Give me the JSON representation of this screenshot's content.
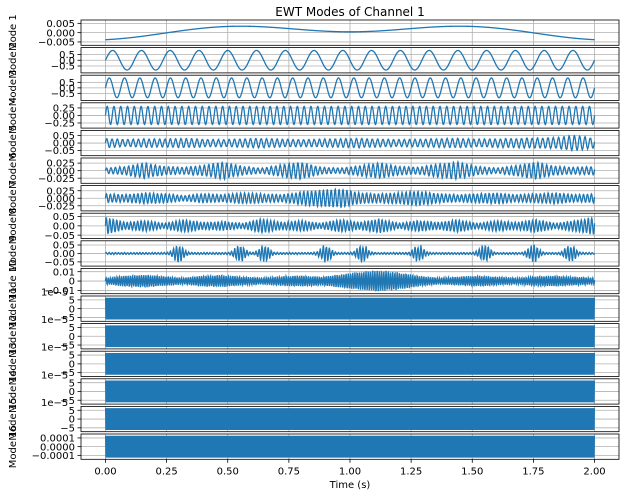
{
  "chart_data": {
    "type": "line",
    "title": "EWT Modes of Channel 1",
    "xlabel": "Time (s)",
    "xlim": [
      -0.1,
      2.1
    ],
    "x_ticks": [
      "0.00",
      "0.25",
      "0.50",
      "0.75",
      "1.00",
      "1.25",
      "1.50",
      "1.75",
      "2.00"
    ],
    "x_tick_values": [
      0,
      0.25,
      0.5,
      0.75,
      1.0,
      1.25,
      1.5,
      1.75,
      2.0
    ],
    "x_range": [
      0,
      2
    ],
    "grid": true,
    "line_color": "#1f77b4",
    "panels": [
      {
        "ylabel": "Mode 1",
        "ticks": [
          "0.005",
          "0.000",
          "−0.005"
        ],
        "tick_values": [
          0.005,
          0,
          -0.005
        ],
        "ylim": [
          -0.0068,
          0.0068
        ],
        "offset_text": "",
        "signal": {
          "kind": "trend",
          "amp": 0.0062
        }
      },
      {
        "ylabel": "Mode 2",
        "ticks": [
          "0.5",
          "0.0",
          "−0.5"
        ],
        "tick_values": [
          0.5,
          0,
          -0.5
        ],
        "ylim": [
          -1.1,
          1.1
        ],
        "offset_text": "",
        "signal": {
          "kind": "sine",
          "amp": 0.85,
          "freq": 8.5
        }
      },
      {
        "ylabel": "Mode 3",
        "ticks": [
          "0.5",
          "0.0",
          "−0.5"
        ],
        "tick_values": [
          0.5,
          0,
          -0.5
        ],
        "ylim": [
          -1.15,
          1.15
        ],
        "offset_text": "",
        "signal": {
          "kind": "sine",
          "amp": 0.9,
          "freq": 16
        }
      },
      {
        "ylabel": "Mode 4",
        "ticks": [
          "0.25",
          "0.00",
          "−0.25"
        ],
        "tick_values": [
          0.25,
          0,
          -0.25
        ],
        "ylim": [
          -0.42,
          0.42
        ],
        "offset_text": "",
        "signal": {
          "kind": "sine",
          "amp": 0.3,
          "freq": 36
        }
      },
      {
        "ylabel": "Mode 5",
        "ticks": [
          "0.05",
          "0.00",
          "−0.05"
        ],
        "tick_values": [
          0.05,
          0,
          -0.05
        ],
        "ylim": [
          -0.085,
          0.085
        ],
        "offset_text": "",
        "signal": {
          "kind": "am",
          "amp": 0.055,
          "freq": 46,
          "seed": 5,
          "env": [
            0.6,
            0.45,
            0.55,
            0.5,
            0.6,
            0.5,
            0.45,
            0.55,
            0.6,
            0.5,
            0.45,
            0.5,
            0.55,
            0.6,
            0.5,
            0.45,
            0.5,
            0.55,
            0.6,
            0.5,
            0.55,
            0.6,
            0.65,
            0.7,
            1.0,
            0.6
          ]
        }
      },
      {
        "ylabel": "Mode 6",
        "ticks": [
          "0.025",
          "0.000",
          "−0.025"
        ],
        "tick_values": [
          0.025,
          0,
          -0.025
        ],
        "ylim": [
          -0.042,
          0.042
        ],
        "offset_text": "",
        "signal": {
          "kind": "am",
          "amp": 0.03,
          "freq": 55,
          "seed": 6,
          "env": [
            0.3,
            0.5,
            0.9,
            0.5,
            0.4,
            0.6,
            1.0,
            0.5,
            0.3,
            0.7,
            1.0,
            0.4,
            0.3,
            0.6,
            0.9,
            0.5,
            0.4,
            0.8,
            1.0,
            0.5,
            0.3,
            0.6,
            1.0,
            0.5,
            0.4,
            0.5
          ]
        }
      },
      {
        "ylabel": "Mode 7",
        "ticks": [
          "0.025",
          "0.000",
          "−0.025"
        ],
        "tick_values": [
          0.025,
          0,
          -0.025
        ],
        "ylim": [
          -0.042,
          0.042
        ],
        "offset_text": "",
        "signal": {
          "kind": "am",
          "amp": 0.032,
          "freq": 62,
          "seed": 7,
          "env": [
            0.5,
            0.4,
            0.6,
            0.5,
            0.3,
            0.5,
            0.4,
            0.6,
            0.5,
            0.4,
            0.7,
            0.9,
            1.0,
            0.6,
            0.5,
            0.6,
            0.8,
            0.5,
            0.4,
            0.5,
            0.6,
            0.4,
            0.5,
            0.6,
            0.4,
            0.5
          ]
        }
      },
      {
        "ylabel": "Mode 8",
        "ticks": [
          "0.05",
          "0.00",
          "−0.05"
        ],
        "tick_values": [
          0.05,
          0,
          -0.05
        ],
        "ylim": [
          -0.068,
          0.068
        ],
        "offset_text": "",
        "signal": {
          "kind": "am",
          "amp": 0.05,
          "freq": 70,
          "seed": 8,
          "env": [
            1.0,
            0.4,
            0.6,
            0.3,
            0.7,
            0.4,
            0.5,
            0.3,
            0.8,
            0.4,
            0.6,
            0.3,
            0.7,
            0.4,
            0.8,
            0.3,
            0.6,
            0.4,
            0.7,
            0.3,
            0.6,
            0.4,
            0.7,
            0.3,
            0.6,
            1.0
          ]
        }
      },
      {
        "ylabel": "Mode 9",
        "ticks": [
          "0.05",
          "0.00",
          "−0.05"
        ],
        "tick_values": [
          0.05,
          0,
          -0.05
        ],
        "ylim": [
          -0.075,
          0.075
        ],
        "offset_text": "",
        "signal": {
          "kind": "bursts",
          "amp": 0.055,
          "freq": 80,
          "seed": 9,
          "noise": 0.12
        }
      },
      {
        "ylabel": "Mode 10",
        "ticks": [
          "0.01",
          "0",
          "−0.01"
        ],
        "tick_values": [
          0.01,
          0,
          -0.01
        ],
        "ylim": [
          -0.0135,
          0.0135
        ],
        "offset_text": "",
        "signal": {
          "kind": "am",
          "amp": 0.012,
          "freq": 110,
          "seed": 10,
          "env": [
            0.3,
            0.5,
            0.6,
            0.45,
            0.3,
            0.5,
            0.55,
            0.4,
            0.3,
            0.45,
            0.5,
            0.4,
            0.6,
            0.85,
            1.0,
            0.8,
            0.5,
            0.3,
            0.4,
            0.5,
            0.4,
            0.3,
            0.45,
            0.5,
            0.4,
            0.3
          ]
        }
      },
      {
        "ylabel": "Mode 11",
        "ticks": [
          "5",
          "0",
          "−5"
        ],
        "tick_values": [
          5,
          0,
          -5
        ],
        "ylim": [
          -7.2,
          7.2
        ],
        "offset_text": "1e−5",
        "signal": {
          "kind": "dense",
          "amp": 6.2
        }
      },
      {
        "ylabel": "Mode 12",
        "ticks": [
          "5",
          "0",
          "−5"
        ],
        "tick_values": [
          5,
          0,
          -5
        ],
        "ylim": [
          -7.2,
          7.2
        ],
        "offset_text": "1e−5",
        "signal": {
          "kind": "dense",
          "amp": 6.2
        }
      },
      {
        "ylabel": "Mode 13",
        "ticks": [
          "5",
          "0",
          "−5"
        ],
        "tick_values": [
          5,
          0,
          -5
        ],
        "ylim": [
          -7.2,
          7.2
        ],
        "offset_text": "1e−5",
        "signal": {
          "kind": "dense",
          "amp": 6.2
        }
      },
      {
        "ylabel": "Mode 14",
        "ticks": [
          "5",
          "0",
          "−5"
        ],
        "tick_values": [
          5,
          0,
          -5
        ],
        "ylim": [
          -7.2,
          7.2
        ],
        "offset_text": "1e−5",
        "signal": {
          "kind": "dense",
          "amp": 6.2
        }
      },
      {
        "ylabel": "Mode 15",
        "ticks": [
          "5",
          "0",
          "−5"
        ],
        "tick_values": [
          5,
          0,
          -5
        ],
        "ylim": [
          -7.2,
          7.2
        ],
        "offset_text": "1e−5",
        "signal": {
          "kind": "dense",
          "amp": 6.2
        }
      },
      {
        "ylabel": "Mode 16",
        "ticks": [
          "0.0001",
          "0.0000",
          "−0.0001"
        ],
        "tick_values": [
          0.0001,
          0,
          -0.0001
        ],
        "ylim": [
          -0.000145,
          0.000145
        ],
        "offset_text": "",
        "signal": {
          "kind": "dense",
          "amp": 0.000125
        }
      }
    ]
  }
}
